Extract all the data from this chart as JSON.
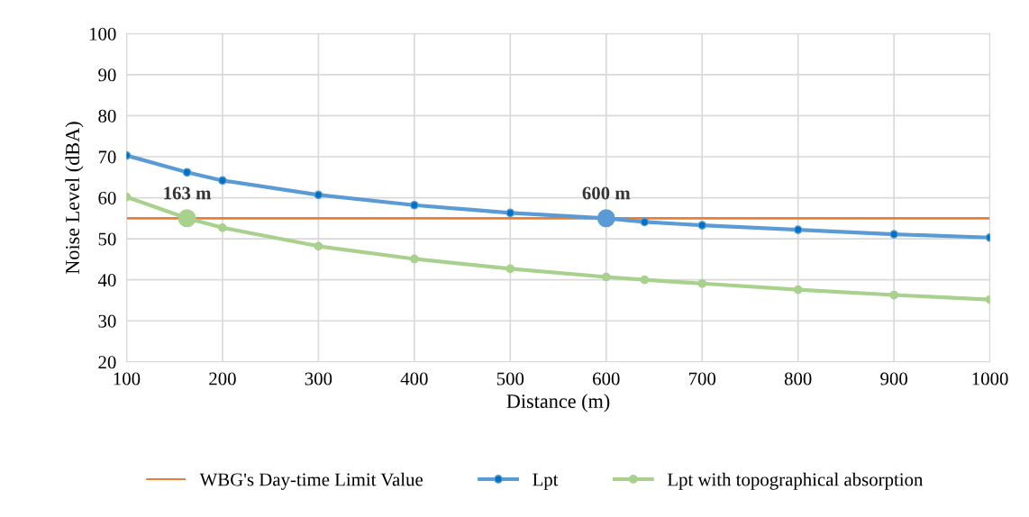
{
  "chart_data": {
    "type": "line",
    "xlabel": "Distance (m)",
    "ylabel": "Noise Level (dBA)",
    "xlim": [
      100,
      1000
    ],
    "xticks": [
      100,
      200,
      300,
      400,
      500,
      600,
      700,
      800,
      900,
      1000
    ],
    "ylim": [
      20,
      100
    ],
    "yticks": [
      20,
      30,
      40,
      50,
      60,
      70,
      80,
      90,
      100
    ],
    "grid": true,
    "legend": "bottom",
    "marker": "circle",
    "line_style": "solid",
    "ref_lines": [
      {
        "axis": "y",
        "value": 55,
        "label": "WBG's Day-time Limit Value",
        "color": "#ed7d31"
      }
    ],
    "series": [
      {
        "name": "Lpt",
        "color": "#5b9bd5",
        "x": [
          100,
          163,
          200,
          300,
          400,
          500,
          600,
          640,
          700,
          800,
          900,
          1000
        ],
        "values": [
          70.3,
          66.2,
          64.2,
          60.7,
          58.2,
          56.3,
          55,
          54.1,
          53.3,
          52.2,
          51.1,
          50.3
        ]
      },
      {
        "name": "Lpt with topographical absorption",
        "color": "#a9d18e",
        "x": [
          100,
          163,
          200,
          300,
          400,
          500,
          600,
          640,
          700,
          800,
          900,
          1000
        ],
        "values": [
          60.2,
          55,
          52.7,
          48.2,
          45.1,
          42.7,
          40.7,
          40.0,
          39.1,
          37.6,
          36.3,
          35.2
        ]
      },
      {
        "type": "scatter",
        "color": "#a9d18e",
        "x": [
          163
        ],
        "values": [
          55
        ]
      },
      {
        "type": "scatter",
        "color": "#5b9bd5",
        "x": [
          600
        ],
        "values": [
          55
        ]
      }
    ],
    "annotations": [
      {
        "text": "163 m",
        "x": 163,
        "y": 55
      },
      {
        "text": "600 m",
        "x": 600,
        "y": 55
      }
    ]
  }
}
